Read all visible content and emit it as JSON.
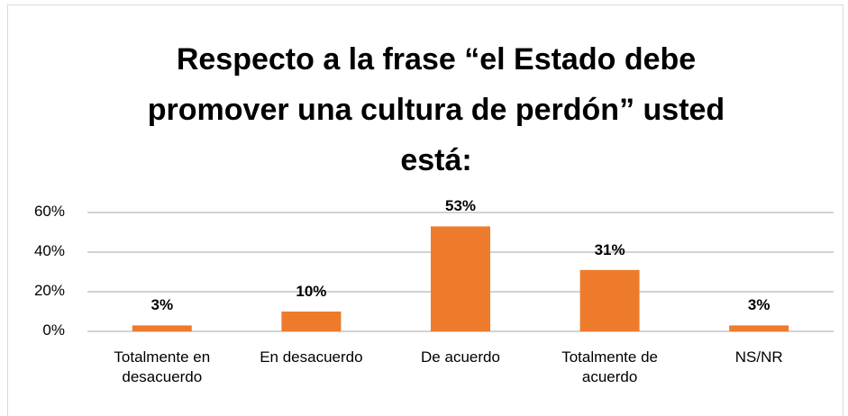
{
  "chart_data": {
    "type": "bar",
    "title": "Respecto a la frase “el Estado debe promover una cultura de perdón” usted está:",
    "categories": [
      "Totalmente en desacuerdo",
      "En desacuerdo",
      "De acuerdo",
      "Totalmente de acuerdo",
      "NS/NR"
    ],
    "values": [
      3,
      10,
      53,
      31,
      3
    ],
    "value_labels": [
      "3%",
      "10%",
      "53%",
      "31%",
      "3%"
    ],
    "color": "#ee7b2c",
    "ylim": [
      0,
      60
    ],
    "yticks": [
      {
        "value": 0,
        "label": "0%"
      },
      {
        "value": 20,
        "label": "20%"
      },
      {
        "value": 40,
        "label": "40%"
      },
      {
        "value": 60,
        "label": "60%"
      }
    ],
    "grid": true
  }
}
